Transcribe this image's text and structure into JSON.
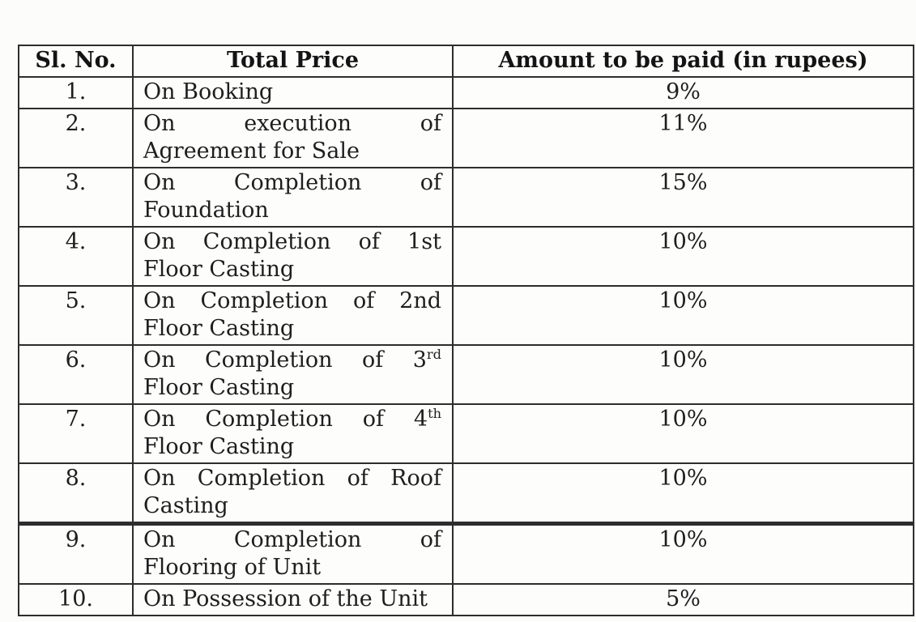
{
  "colors": {
    "background": "#fcfcfb",
    "border": "#2d2d2d",
    "text": "#1e1e1e"
  },
  "table": {
    "headers": [
      "Sl. No.",
      "Total Price",
      "Amount to be paid (in rupees)"
    ],
    "rows": [
      {
        "no": "1.",
        "desc": [
          [
            {
              "t": "On Booking"
            }
          ]
        ],
        "amount": "9%"
      },
      {
        "no": "2.",
        "desc": [
          [
            {
              "t": "On execution of"
            }
          ],
          [
            {
              "t": "Agreement for Sale"
            }
          ]
        ],
        "amount": "11%"
      },
      {
        "no": "3.",
        "desc": [
          [
            {
              "t": "On Completion of"
            }
          ],
          [
            {
              "t": "Foundation"
            }
          ]
        ],
        "amount": "15%"
      },
      {
        "no": "4.",
        "desc": [
          [
            {
              "t": "On Completion of 1st"
            }
          ],
          [
            {
              "t": "Floor Casting"
            }
          ]
        ],
        "amount": "10%"
      },
      {
        "no": "5.",
        "desc": [
          [
            {
              "t": "On Completion of 2nd"
            }
          ],
          [
            {
              "t": "Floor Casting"
            }
          ]
        ],
        "amount": "10%"
      },
      {
        "no": "6.",
        "desc": [
          [
            {
              "t": "On Completion of 3"
            },
            {
              "t": "rd",
              "sup": true
            }
          ],
          [
            {
              "t": "Floor Casting"
            }
          ]
        ],
        "amount": "10%"
      },
      {
        "no": "7.",
        "desc": [
          [
            {
              "t": "On Completion of 4"
            },
            {
              "t": "th",
              "sup": true
            }
          ],
          [
            {
              "t": "Floor Casting"
            }
          ]
        ],
        "amount": "10%"
      },
      {
        "no": "8.",
        "desc": [
          [
            {
              "t": "On Completion of Roof"
            }
          ],
          [
            {
              "t": "Casting"
            }
          ]
        ],
        "amount": "10%",
        "thick_bottom": true
      },
      {
        "no": "9.",
        "desc": [
          [
            {
              "t": "On Completion of"
            }
          ],
          [
            {
              "t": "Flooring of Unit"
            }
          ]
        ],
        "amount": "10%"
      },
      {
        "no": "10.",
        "desc": [
          [
            {
              "t": "On Possession of the Unit"
            }
          ]
        ],
        "amount": "5%"
      }
    ]
  }
}
